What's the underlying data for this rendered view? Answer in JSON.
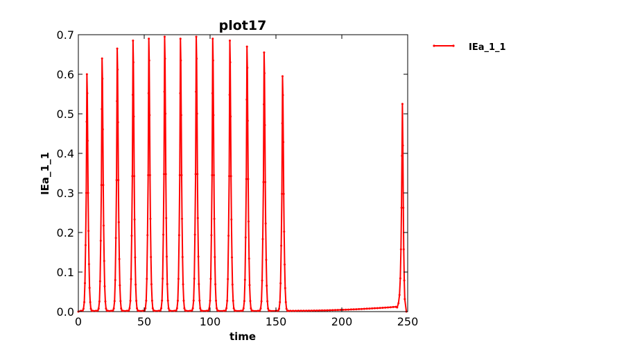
{
  "chart_data": {
    "type": "line",
    "title": "plot17",
    "xlabel": "time",
    "ylabel": "IEa_1_1",
    "xlim": [
      0,
      250
    ],
    "ylim": [
      0,
      0.7
    ],
    "xticks": [
      0,
      50,
      100,
      150,
      200,
      250
    ],
    "yticks": [
      0.0,
      0.1,
      0.2,
      0.3,
      0.4,
      0.5,
      0.6,
      0.7
    ],
    "xtick_labels": [
      "0",
      "50",
      "100",
      "150",
      "200",
      "250"
    ],
    "ytick_labels": [
      "0.0",
      "0.1",
      "0.2",
      "0.3",
      "0.4",
      "0.5",
      "0.6",
      "0.7"
    ],
    "grid": false,
    "legend_position": "outside-top-right",
    "series": [
      {
        "name": "IEa_1_1",
        "color": "#ff0000",
        "marker": "dot",
        "spike_times": [
          6.5,
          18.0,
          29.5,
          41.5,
          53.5,
          65.5,
          77.5,
          89.5,
          102.0,
          115.0,
          128.0,
          141.0,
          155.0
        ],
        "spike_peaks": [
          0.6,
          0.64,
          0.665,
          0.685,
          0.69,
          0.695,
          0.69,
          0.695,
          0.69,
          0.685,
          0.67,
          0.655,
          0.595
        ],
        "quiescent_start": 159,
        "quiescent_level_start": 0.002,
        "quiescent_level_end": 0.012,
        "final_spike_time": 246,
        "final_spike_peak": 0.525,
        "end_time": 249
      }
    ]
  }
}
